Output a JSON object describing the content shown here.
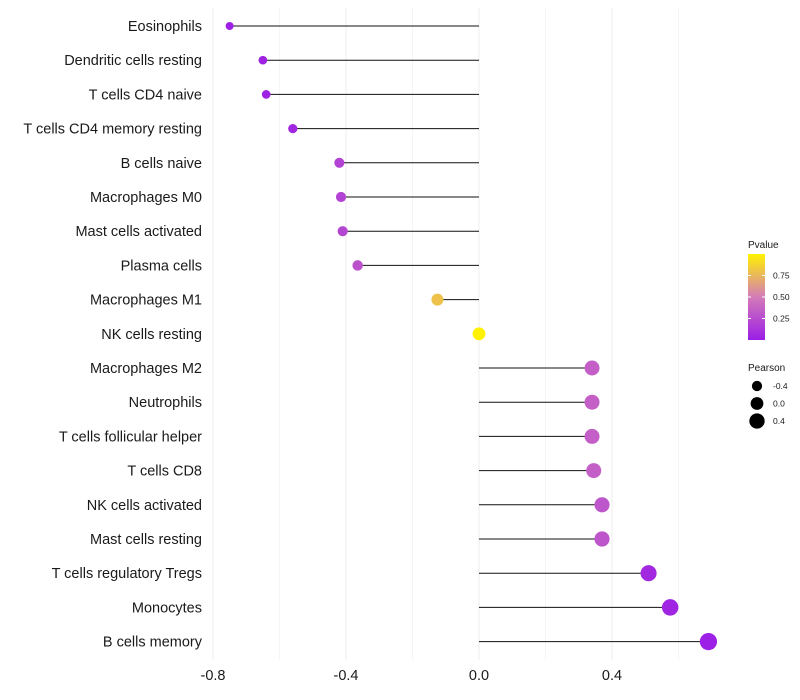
{
  "chart_data": {
    "type": "lollipop",
    "title": "",
    "xlabel": "",
    "ylabel": "",
    "xlim": [
      -0.82,
      0.74
    ],
    "x_ticks": [
      -0.8,
      -0.4,
      0.0,
      0.4
    ],
    "x_tick_labels": [
      "-0.8",
      "-0.4",
      "0.0",
      "0.4"
    ],
    "grid": true,
    "categories": [
      "Eosinophils",
      "Dendritic cells resting",
      "T cells CD4 naive",
      "T cells CD4 memory resting",
      "B cells naive",
      "Macrophages M0",
      "Mast cells activated",
      "Plasma cells",
      "Macrophages M1",
      "NK cells resting",
      "Macrophages M2",
      "Neutrophils",
      "T cells follicular helper",
      "T cells CD8",
      "NK cells activated",
      "Mast cells resting",
      "T cells regulatory  Tregs",
      "Monocytes",
      "B cells memory"
    ],
    "pearson": [
      -0.75,
      -0.65,
      -0.64,
      -0.56,
      -0.42,
      -0.415,
      -0.41,
      -0.365,
      -0.125,
      0.0,
      0.34,
      0.34,
      0.34,
      0.345,
      0.37,
      0.37,
      0.51,
      0.575,
      0.69
    ],
    "pvalue": [
      0.01,
      0.02,
      0.02,
      0.05,
      0.2,
      0.2,
      0.22,
      0.28,
      0.8,
      1.0,
      0.35,
      0.35,
      0.35,
      0.35,
      0.3,
      0.3,
      0.06,
      0.04,
      0.01
    ],
    "color_legend": {
      "title": "Pvalue",
      "ticks": [
        "0.25",
        "0.50",
        "0.75"
      ],
      "tick_values": [
        0.25,
        0.5,
        0.75
      ],
      "range": [
        0.0,
        1.0
      ],
      "low_color": "#9b1ee6",
      "mid_color": "#d47bb8",
      "high_color": "#fff200"
    },
    "size_legend": {
      "title": "Pearson",
      "labels": [
        "-0.4",
        "0.0",
        "0.4"
      ],
      "values": [
        -0.4,
        0.0,
        0.4
      ]
    }
  }
}
